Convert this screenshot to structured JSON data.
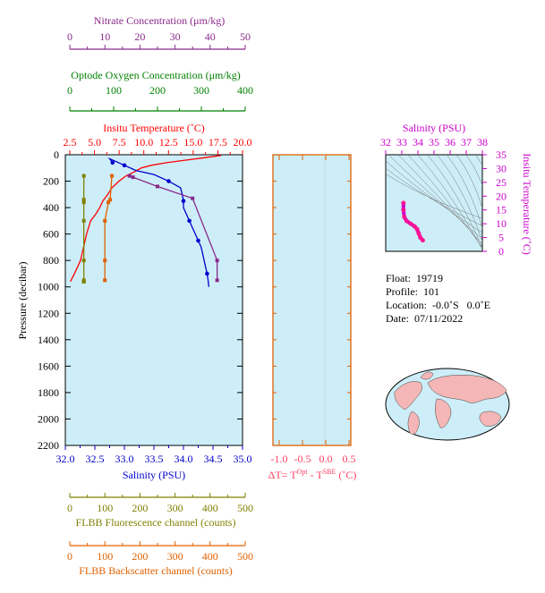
{
  "colors": {
    "nitrate": "#8B2A8B",
    "oxygen": "#008000",
    "temperature": "#FF0000",
    "salinity": "#0000CC",
    "fluorescence": "#808000",
    "backscatter": "#E06000",
    "deltaT": "#FF4060",
    "ts_salinity_axis": "#CC00CC",
    "plot_bg": "#CDEEF8"
  },
  "axes": {
    "nitrate": {
      "label": "Nitrate Concentration (μm/kg)",
      "ticks": [
        "0",
        "10",
        "20",
        "30",
        "40",
        "50"
      ]
    },
    "oxygen": {
      "label": "Optode Oxygen Concentration (μm/kg)",
      "ticks": [
        "0",
        "100",
        "200",
        "300",
        "400"
      ]
    },
    "temperature": {
      "label": "Insitu Temperature (˚C)",
      "ticks": [
        "2.5",
        "5.0",
        "7.5",
        "10.0",
        "12.5",
        "15.0",
        "17.5",
        "20.0"
      ]
    },
    "salinity": {
      "label": "Salinity (PSU)",
      "ticks": [
        "32.0",
        "32.5",
        "33.0",
        "33.5",
        "34.0",
        "34.5",
        "35.0"
      ]
    },
    "pressure": {
      "label": "Pressure (decibar)",
      "ticks": [
        "0",
        "200",
        "400",
        "600",
        "800",
        "1000",
        "1200",
        "1400",
        "1600",
        "1800",
        "2000",
        "2200"
      ]
    },
    "fluorescence": {
      "label": "FLBB Fluorescence channel (counts)",
      "ticks": [
        "0",
        "100",
        "200",
        "300",
        "400",
        "500"
      ]
    },
    "backscatter": {
      "label": "FLBB Backscatter channel (counts)",
      "ticks": [
        "0",
        "100",
        "200",
        "300",
        "400",
        "500"
      ]
    },
    "deltaT": {
      "label_prefix": "ΔT= T",
      "sup1": "Opt",
      "label_mid": " - T",
      "sup2": "SBE",
      "label_suffix": " (˚C)",
      "ticks": [
        "-1.0",
        "-0.5",
        "0.0",
        "0.5"
      ]
    },
    "ts_salinity": {
      "label": "Salinity (PSU)",
      "ticks": [
        "32",
        "33",
        "34",
        "35",
        "36",
        "37",
        "38"
      ]
    },
    "ts_temperature": {
      "label": "Insitu Temperature (˚C)",
      "ticks": [
        "0",
        "5",
        "10",
        "15",
        "20",
        "25",
        "30",
        "35"
      ]
    }
  },
  "info": {
    "float_label": "Float:",
    "float_value": "19719",
    "profile_label": "Profile:",
    "profile_value": "101",
    "location_label": "Location:",
    "location_value": "-0.0˚S   0.0˚E",
    "date_label": "Date:",
    "date_value": "07/11/2022"
  },
  "chart_data": [
    {
      "type": "line",
      "panel": "profile",
      "y_axis": "Pressure (decibar)",
      "ylim": [
        2200,
        0
      ],
      "series": [
        {
          "name": "Insitu Temperature (˚C)",
          "xlim": [
            2.5,
            20.0
          ],
          "x": [
            17.9,
            16.5,
            14.5,
            12.5,
            11.0,
            10.0,
            9.3,
            8.5,
            7.8,
            7.1,
            6.7,
            6.2,
            5.9,
            5.5,
            5.0,
            4.6,
            4.3,
            4.0,
            3.7,
            3.4,
            3.0
          ],
          "y": [
            5,
            20,
            40,
            60,
            80,
            100,
            130,
            160,
            200,
            250,
            300,
            350,
            400,
            450,
            500,
            600,
            700,
            800,
            850,
            900,
            960
          ]
        },
        {
          "name": "Salinity (PSU)",
          "xlim": [
            32.0,
            35.0
          ],
          "x": [
            32.8,
            32.75,
            32.8,
            33.0,
            33.2,
            33.5,
            33.75,
            33.95,
            33.98,
            34.0,
            34.0,
            34.05,
            34.1,
            34.15,
            34.2,
            34.25,
            34.3,
            34.35,
            34.4,
            34.42,
            34.43
          ],
          "y": [
            60,
            30,
            40,
            80,
            120,
            150,
            200,
            250,
            300,
            350,
            400,
            450,
            500,
            550,
            600,
            650,
            700,
            800,
            900,
            960,
            1000
          ]
        },
        {
          "name": "Nitrate Concentration (μm/kg)",
          "xlim": [
            0,
            50
          ],
          "x": [
            17,
            18,
            25,
            35,
            42,
            42
          ],
          "y": [
            160,
            170,
            240,
            330,
            800,
            950
          ]
        },
        {
          "name": "FLBB Fluorescence channel (counts)",
          "xlim": [
            0,
            500
          ],
          "x": [
            40,
            40,
            40,
            40,
            40,
            40,
            40,
            40
          ],
          "y": [
            160,
            340,
            360,
            500,
            800,
            950,
            960,
            960
          ]
        },
        {
          "name": "FLBB Backscatter channel (counts)",
          "xlim": [
            0,
            500
          ],
          "x": [
            120,
            115,
            110,
            100,
            100,
            100
          ],
          "y": [
            160,
            340,
            360,
            500,
            800,
            950
          ]
        }
      ]
    },
    {
      "type": "line",
      "panel": "deltaT",
      "xlim": [
        -1.1,
        0.6
      ],
      "ylim": [
        2200,
        0
      ],
      "series": []
    },
    {
      "type": "scatter",
      "panel": "TS diagram",
      "xlabel": "Salinity (PSU)",
      "ylabel": "Insitu Temperature (˚C)",
      "xlim": [
        32,
        38
      ],
      "ylim": [
        0,
        35
      ],
      "x": [
        33.1,
        33.1,
        33.15,
        33.3,
        33.55,
        33.8,
        33.95,
        34.05,
        34.15,
        34.3
      ],
      "y": [
        17.5,
        15.0,
        12.5,
        11.0,
        10.0,
        9.0,
        8.0,
        6.5,
        5.0,
        4.0
      ]
    }
  ]
}
